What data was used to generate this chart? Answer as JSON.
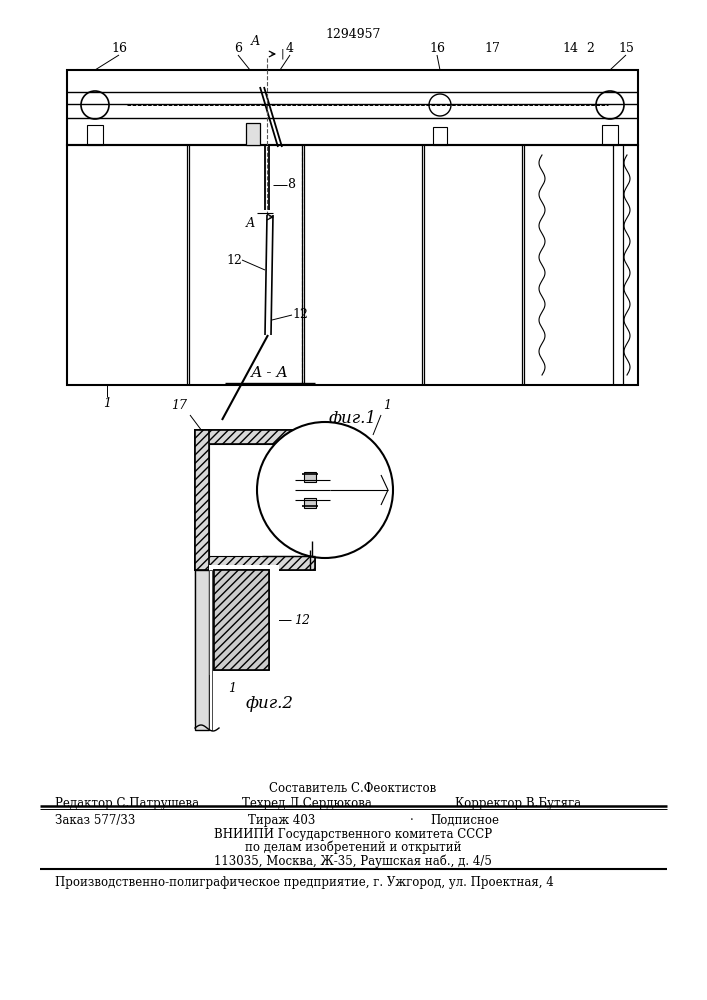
{
  "patent_number": "1294957",
  "bg_color": "#ffffff",
  "line_color": "#000000",
  "fig1_caption": "фиг.1",
  "fig2_caption": "фиг.2",
  "section_label": "А - А",
  "footer": {
    "composer": "Составитель С.Феоктистов",
    "editor": "Редактор С.Патрушева",
    "techred": "Техред Л.Сердюкова",
    "corrector": "Корректор В.Бутяга",
    "order": "Заказ 577/33",
    "circulation": "Тираж 403",
    "subscription": "Подписное",
    "org1": "ВНИИПИ Государственного комитета СССР",
    "org2": "по делам изобретений и открытий",
    "org3": "113035, Москва, Ж-35, Раушская наб., д. 4/5",
    "print": "Производственно-полиграфическое предприятие, г. Ужгород, ул. Проектная, 4"
  }
}
